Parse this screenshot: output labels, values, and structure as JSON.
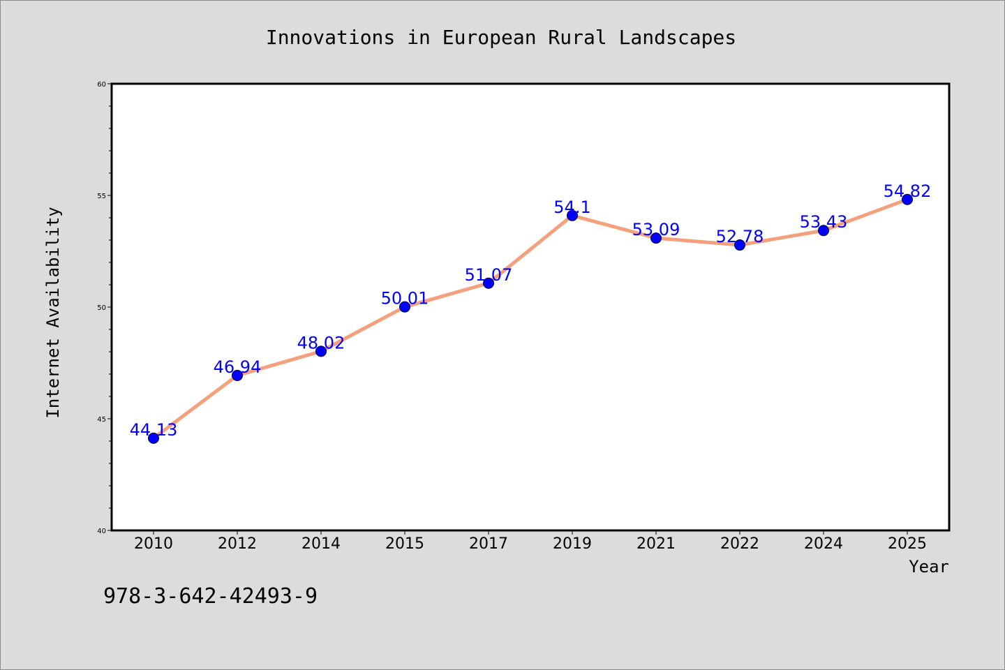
{
  "chart_data": {
    "type": "line",
    "title": "Innovations in European Rural Landscapes",
    "xlabel": "Year",
    "ylabel": "Internet Availability",
    "categories": [
      "2010",
      "2012",
      "2014",
      "2015",
      "2017",
      "2019",
      "2021",
      "2022",
      "2024",
      "2025"
    ],
    "series": [
      {
        "values": [
          44.13,
          46.94,
          48.02,
          50.01,
          51.07,
          54.1,
          53.09,
          52.78,
          53.43,
          54.82
        ],
        "labels": [
          "44.13",
          "46.94",
          "48.02",
          "50.01",
          "51.07",
          "54.1",
          "53.09",
          "52.78",
          "53.43",
          "54.82"
        ],
        "line_color": "#f4a07c",
        "marker_color": "#0000ff"
      }
    ],
    "ylim": [
      40,
      60
    ],
    "yticks": [
      "40",
      "45",
      "50",
      "55",
      "60"
    ],
    "grid": false,
    "legend": "none"
  },
  "annotation": "978-3-642-42493-9",
  "colors": {
    "background": "#dcdcdc",
    "plot_background": "#ffffff",
    "label_color": "#0000ff"
  }
}
